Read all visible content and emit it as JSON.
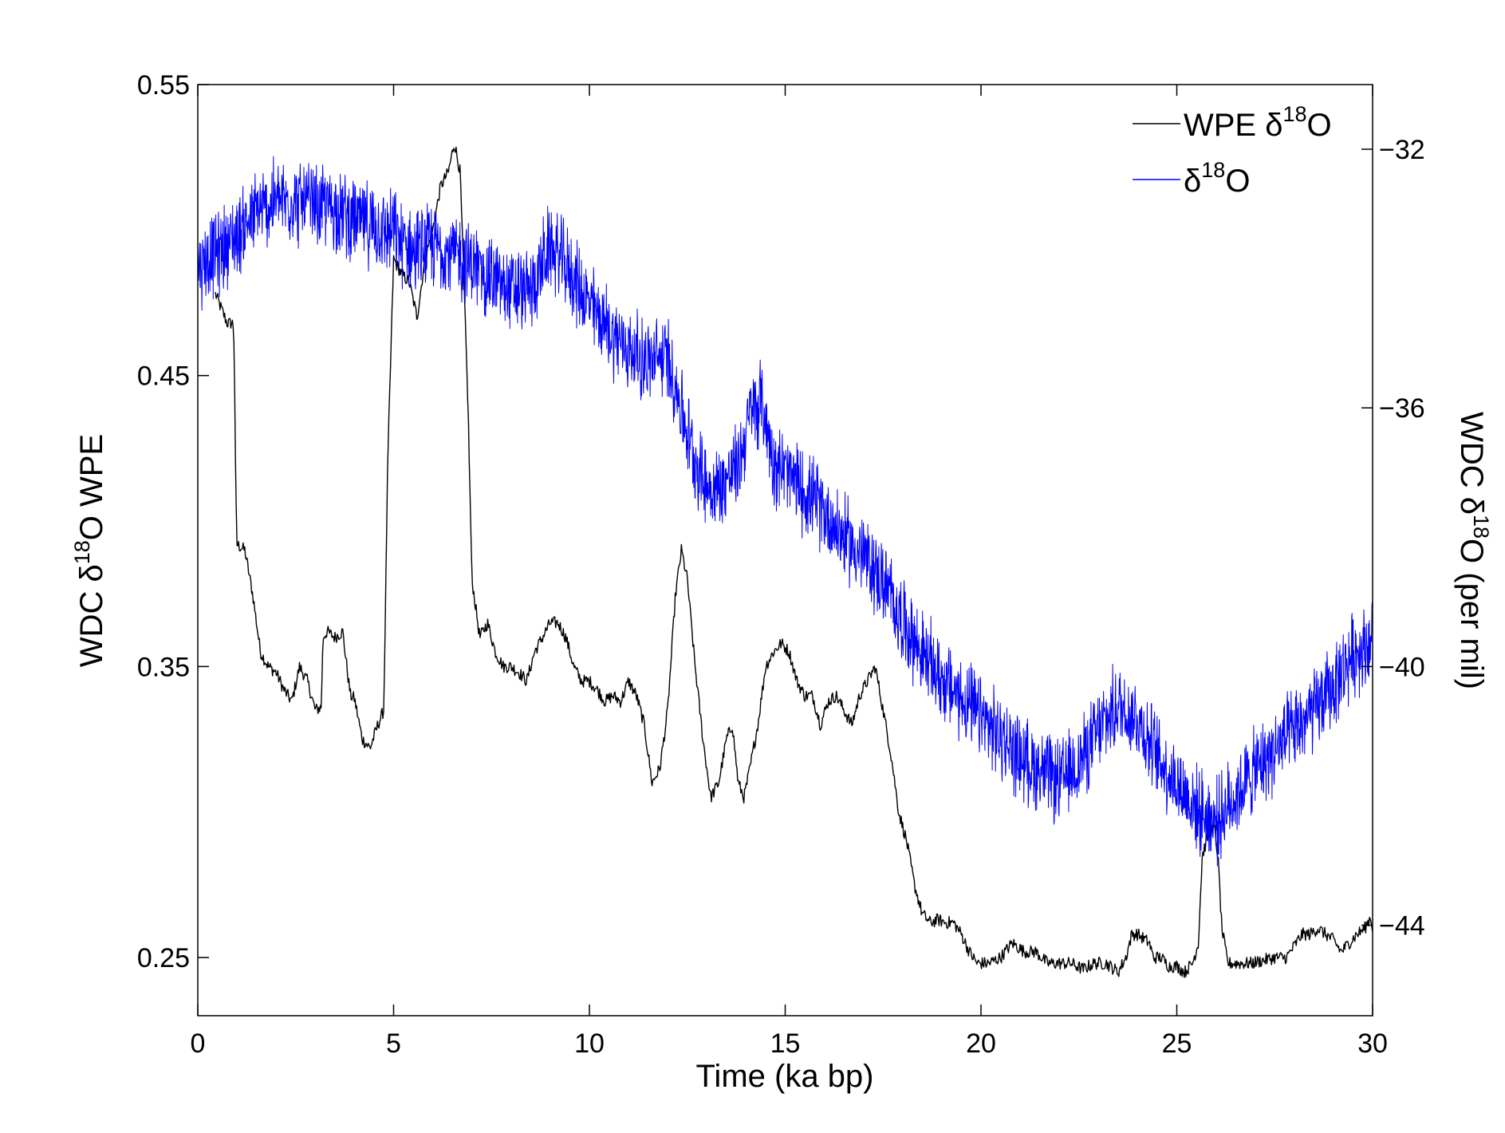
{
  "chart_data": {
    "type": "line",
    "xlabel": "Time (ka bp)",
    "ylabel_left": {
      "main": "WDC δ",
      "sup": "18",
      "rest": "O WPE"
    },
    "ylabel_right": {
      "main": "WDC δ",
      "sup": "18",
      "rest": "O (per mil)"
    },
    "xlim": [
      0,
      30
    ],
    "ylim_left": [
      0.23,
      0.55
    ],
    "ylim_right": [
      -45.4,
      -31.0
    ],
    "x_ticks": [
      0,
      5,
      10,
      15,
      20,
      25,
      30
    ],
    "x_tick_labels": [
      "0",
      "5",
      "10",
      "15",
      "20",
      "25",
      "30"
    ],
    "y_left_ticks": [
      0.25,
      0.35,
      0.45,
      0.55
    ],
    "y_left_tick_labels": [
      "0.25",
      "0.35",
      "0.45",
      "0.55"
    ],
    "y_right_ticks": [
      -44,
      -40,
      -36,
      -32
    ],
    "y_right_tick_labels": [
      "−44",
      "−40",
      "−36",
      "−32"
    ],
    "grid": false,
    "legend_position": "top-right",
    "colors": {
      "wpe": "#000000",
      "d18o": "#0000ff",
      "axis": "#000000"
    },
    "series": [
      {
        "name": "WPE δ18O",
        "legend_main": "WPE δ",
        "legend_sup": "18",
        "legend_rest": "O",
        "axis": "left",
        "color": "#000000",
        "x": [
          0.45,
          0.6,
          0.75,
          0.9,
          0.93,
          0.97,
          1.0,
          1.2,
          1.4,
          1.6,
          1.8,
          2.0,
          2.2,
          2.4,
          2.6,
          2.8,
          3.0,
          3.15,
          3.2,
          3.3,
          3.5,
          3.7,
          3.85,
          3.9,
          4.0,
          4.2,
          4.4,
          4.6,
          4.75,
          4.85,
          5.0,
          5.2,
          5.4,
          5.6,
          5.8,
          6.0,
          6.2,
          6.4,
          6.55,
          6.7,
          6.8,
          6.9,
          7.0,
          7.2,
          7.4,
          7.6,
          7.8,
          8.0,
          8.2,
          8.4,
          8.6,
          8.8,
          9.0,
          9.2,
          9.4,
          9.6,
          9.8,
          10.0,
          10.2,
          10.4,
          10.6,
          10.8,
          11.0,
          11.2,
          11.4,
          11.6,
          11.8,
          12.0,
          12.2,
          12.35,
          12.5,
          12.7,
          12.9,
          13.1,
          13.3,
          13.5,
          13.65,
          13.8,
          13.95,
          14.1,
          14.3,
          14.5,
          14.7,
          14.9,
          15.1,
          15.3,
          15.5,
          15.7,
          15.9,
          16.1,
          16.3,
          16.5,
          16.7,
          16.9,
          17.1,
          17.3,
          17.5,
          17.7,
          17.9,
          18.1,
          18.3,
          18.5,
          18.7,
          18.9,
          19.1,
          19.3,
          19.5,
          19.7,
          19.9,
          20.2,
          20.5,
          20.8,
          21.1,
          21.4,
          21.7,
          22.0,
          22.3,
          22.6,
          22.9,
          23.2,
          23.5,
          23.7,
          23.85,
          24.0,
          24.2,
          24.3,
          24.4,
          24.6,
          24.8,
          25.0,
          25.2,
          25.4,
          25.55,
          25.65,
          25.8,
          25.95,
          26.05,
          26.15,
          26.3,
          26.6,
          26.9,
          27.2,
          27.5,
          27.8,
          28.0,
          28.2,
          28.4,
          28.6,
          28.8,
          29.0,
          29.2,
          29.4,
          29.6,
          29.8,
          29.95,
          30.0
        ],
        "y": [
          0.478,
          0.473,
          0.468,
          0.468,
          0.46,
          0.41,
          0.392,
          0.39,
          0.375,
          0.355,
          0.35,
          0.348,
          0.342,
          0.338,
          0.35,
          0.345,
          0.335,
          0.336,
          0.36,
          0.362,
          0.36,
          0.362,
          0.345,
          0.34,
          0.339,
          0.325,
          0.322,
          0.33,
          0.335,
          0.42,
          0.49,
          0.485,
          0.482,
          0.47,
          0.49,
          0.5,
          0.515,
          0.52,
          0.53,
          0.52,
          0.48,
          0.44,
          0.38,
          0.36,
          0.365,
          0.355,
          0.35,
          0.35,
          0.348,
          0.345,
          0.355,
          0.36,
          0.365,
          0.365,
          0.36,
          0.35,
          0.345,
          0.345,
          0.342,
          0.338,
          0.34,
          0.338,
          0.345,
          0.34,
          0.33,
          0.31,
          0.315,
          0.335,
          0.375,
          0.39,
          0.38,
          0.35,
          0.325,
          0.305,
          0.31,
          0.325,
          0.33,
          0.31,
          0.305,
          0.315,
          0.33,
          0.35,
          0.355,
          0.358,
          0.355,
          0.345,
          0.34,
          0.34,
          0.33,
          0.338,
          0.34,
          0.335,
          0.33,
          0.34,
          0.345,
          0.35,
          0.335,
          0.32,
          0.3,
          0.29,
          0.275,
          0.265,
          0.262,
          0.263,
          0.262,
          0.262,
          0.258,
          0.252,
          0.248,
          0.248,
          0.25,
          0.255,
          0.252,
          0.252,
          0.248,
          0.248,
          0.248,
          0.246,
          0.248,
          0.248,
          0.245,
          0.25,
          0.258,
          0.258,
          0.256,
          0.255,
          0.25,
          0.25,
          0.247,
          0.247,
          0.245,
          0.248,
          0.255,
          0.285,
          0.292,
          0.295,
          0.285,
          0.26,
          0.248,
          0.248,
          0.248,
          0.249,
          0.25,
          0.25,
          0.254,
          0.258,
          0.258,
          0.26,
          0.258,
          0.256,
          0.252,
          0.255,
          0.258,
          0.26,
          0.264,
          0.26
        ]
      },
      {
        "name": "δ18O",
        "legend_main": "δ",
        "legend_sup": "18",
        "legend_rest": "O",
        "axis": "right",
        "color": "#0000ff",
        "x": [
          0.0,
          0.5,
          1.0,
          1.5,
          2.0,
          2.5,
          3.0,
          3.5,
          4.0,
          4.5,
          5.0,
          5.5,
          6.0,
          6.5,
          7.0,
          7.5,
          8.0,
          8.5,
          9.0,
          9.5,
          10.0,
          10.5,
          11.0,
          11.5,
          12.0,
          12.3,
          12.6,
          12.9,
          13.2,
          13.5,
          13.8,
          14.1,
          14.4,
          14.7,
          15.0,
          15.5,
          16.0,
          16.5,
          17.0,
          17.5,
          18.0,
          18.5,
          19.0,
          19.5,
          20.0,
          20.5,
          21.0,
          21.5,
          22.0,
          22.5,
          23.0,
          23.5,
          24.0,
          24.5,
          25.0,
          25.5,
          26.0,
          26.5,
          27.0,
          27.5,
          28.0,
          28.5,
          29.0,
          29.5,
          30.0
        ],
        "y": [
          -33.8,
          -33.6,
          -33.3,
          -33.0,
          -32.8,
          -32.8,
          -32.9,
          -32.9,
          -33.1,
          -33.2,
          -33.3,
          -33.6,
          -33.5,
          -33.6,
          -33.8,
          -34.0,
          -34.2,
          -34.2,
          -33.5,
          -33.9,
          -34.4,
          -34.8,
          -35.1,
          -35.3,
          -35.2,
          -35.9,
          -36.6,
          -37.1,
          -37.3,
          -37.1,
          -36.9,
          -36.1,
          -35.9,
          -36.8,
          -37.0,
          -37.3,
          -37.6,
          -38.0,
          -38.3,
          -38.7,
          -39.3,
          -39.8,
          -40.2,
          -40.5,
          -40.8,
          -41.1,
          -41.4,
          -41.6,
          -41.8,
          -41.5,
          -41.0,
          -40.6,
          -40.8,
          -41.4,
          -41.8,
          -42.2,
          -42.4,
          -42.0,
          -41.6,
          -41.3,
          -41.0,
          -40.7,
          -40.3,
          -39.8,
          -39.6
        ]
      }
    ]
  }
}
